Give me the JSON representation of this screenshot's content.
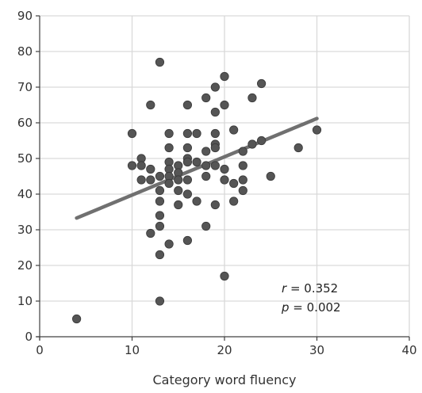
{
  "chart_data": {
    "type": "scatter",
    "title": "",
    "xlabel": "Category word fluency",
    "ylabel": "",
    "xlim": [
      0,
      40
    ],
    "ylim": [
      0,
      90
    ],
    "x_ticks": [
      0,
      10,
      20,
      30,
      40
    ],
    "y_ticks": [
      0,
      10,
      20,
      30,
      40,
      50,
      60,
      70,
      80,
      90
    ],
    "grid": true,
    "series": [
      {
        "points": [
          [
            4,
            5
          ],
          [
            10,
            57
          ],
          [
            10,
            48
          ],
          [
            11,
            50
          ],
          [
            11,
            48
          ],
          [
            11,
            44
          ],
          [
            12,
            65
          ],
          [
            12,
            47
          ],
          [
            12,
            44
          ],
          [
            12,
            29
          ],
          [
            13,
            77
          ],
          [
            13,
            45
          ],
          [
            13,
            41
          ],
          [
            13,
            38
          ],
          [
            13,
            34
          ],
          [
            13,
            31
          ],
          [
            13,
            23
          ],
          [
            13,
            10
          ],
          [
            14,
            57
          ],
          [
            14,
            53
          ],
          [
            14,
            49
          ],
          [
            14,
            47
          ],
          [
            14,
            45
          ],
          [
            14,
            43
          ],
          [
            14,
            26
          ],
          [
            15,
            48
          ],
          [
            15,
            46
          ],
          [
            15,
            44
          ],
          [
            15,
            41
          ],
          [
            15,
            37
          ],
          [
            16,
            65
          ],
          [
            16,
            57
          ],
          [
            16,
            53
          ],
          [
            16,
            50
          ],
          [
            16,
            49
          ],
          [
            16,
            44
          ],
          [
            16,
            40
          ],
          [
            16,
            27
          ],
          [
            17,
            57
          ],
          [
            17,
            49
          ],
          [
            17,
            38
          ],
          [
            18,
            67
          ],
          [
            18,
            52
          ],
          [
            18,
            48
          ],
          [
            18,
            45
          ],
          [
            18,
            31
          ],
          [
            19,
            70
          ],
          [
            19,
            63
          ],
          [
            19,
            57
          ],
          [
            19,
            54
          ],
          [
            19,
            53
          ],
          [
            19,
            48
          ],
          [
            19,
            37
          ],
          [
            20,
            73
          ],
          [
            20,
            65
          ],
          [
            20,
            47
          ],
          [
            20,
            44
          ],
          [
            20,
            17
          ],
          [
            21,
            58
          ],
          [
            21,
            43
          ],
          [
            21,
            38
          ],
          [
            22,
            52
          ],
          [
            22,
            48
          ],
          [
            22,
            44
          ],
          [
            22,
            41
          ],
          [
            23,
            67
          ],
          [
            23,
            54
          ],
          [
            24,
            71
          ],
          [
            24,
            55
          ],
          [
            25,
            45
          ],
          [
            28,
            53
          ],
          [
            30,
            58
          ]
        ]
      }
    ],
    "trendline": {
      "x": [
        4,
        30
      ],
      "y": [
        33.3,
        61.2
      ]
    },
    "marker_color": "#555555",
    "line_color": "#707070",
    "annotation": {
      "r_label": "r",
      "r_value": " = 0.352",
      "p_label": "p",
      "p_value": " = 0.002"
    }
  }
}
